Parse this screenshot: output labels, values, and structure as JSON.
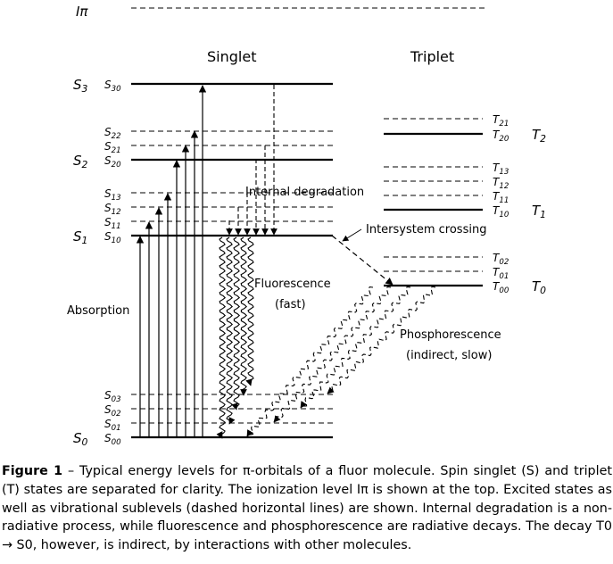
{
  "ionization": {
    "label": "Iπ"
  },
  "singlet": {
    "title": "Singlet",
    "levels": [
      {
        "group": "S3",
        "label": "S30",
        "style": "solid"
      },
      {
        "group": "",
        "label": "S22",
        "style": "dashed"
      },
      {
        "group": "",
        "label": "S21",
        "style": "dashed"
      },
      {
        "group": "S2",
        "label": "S20",
        "style": "solid"
      },
      {
        "group": "",
        "label": "S13",
        "style": "dashed"
      },
      {
        "group": "",
        "label": "S12",
        "style": "dashed"
      },
      {
        "group": "",
        "label": "S11",
        "style": "dashed"
      },
      {
        "group": "S1",
        "label": "S10",
        "style": "solid"
      },
      {
        "group": "",
        "label": "S03",
        "style": "dashed"
      },
      {
        "group": "",
        "label": "S02",
        "style": "dashed"
      },
      {
        "group": "",
        "label": "S01",
        "style": "dashed"
      },
      {
        "group": "S0",
        "label": "S00",
        "style": "solid"
      }
    ]
  },
  "triplet": {
    "title": "Triplet",
    "levels": [
      {
        "group": "",
        "label": "T21",
        "style": "dashed"
      },
      {
        "group": "T2",
        "label": "T20",
        "style": "solid"
      },
      {
        "group": "",
        "label": "T13",
        "style": "dashed"
      },
      {
        "group": "",
        "label": "T12",
        "style": "dashed"
      },
      {
        "group": "",
        "label": "T11",
        "style": "dashed"
      },
      {
        "group": "T1",
        "label": "T10",
        "style": "solid"
      },
      {
        "group": "",
        "label": "T02",
        "style": "dashed"
      },
      {
        "group": "",
        "label": "T01",
        "style": "dashed"
      },
      {
        "group": "T0",
        "label": "T00",
        "style": "solid"
      }
    ]
  },
  "annotations": {
    "absorption": "Absorption",
    "internal_degradation": "Internal degradation",
    "intersystem_crossing": "Intersystem crossing",
    "fluorescence_line1": "Fluorescence",
    "fluorescence_line2": "(fast)",
    "phosphorescence_line1": "Phosphorescence",
    "phosphorescence_line2": "(indirect, slow)"
  },
  "caption": {
    "figure_label": "Figure 1",
    "text": "– Typical energy levels for π-orbitals of a fluor molecule. Spin singlet (S) and triplet (T) states are separated for clarity. The ionization level Iπ is shown at the top. Excited states as well as vibrational sublevels (dashed horizontal lines) are shown. Internal degradation is a non-radiative process, while fluorescence and phosphorescence are radiative decays. The decay T0 → S0, however, is indirect, by interactions with other molecules."
  }
}
